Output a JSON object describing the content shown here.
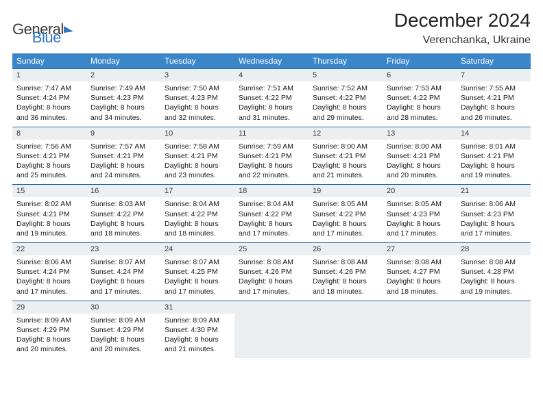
{
  "logo": {
    "text1": "General",
    "text2": "Blue"
  },
  "title": "December 2024",
  "location": "Verenchanka, Ukraine",
  "colors": {
    "header_bg": "#3a86c8",
    "header_text": "#ffffff",
    "daynum_bg": "#eceff1",
    "rule": "#2a6aa5",
    "text": "#1a1a1a",
    "logo_blue": "#2f78bf"
  },
  "weekdays": [
    "Sunday",
    "Monday",
    "Tuesday",
    "Wednesday",
    "Thursday",
    "Friday",
    "Saturday"
  ],
  "weeks": [
    [
      {
        "n": "1",
        "sr": "7:47 AM",
        "ss": "4:24 PM",
        "dl": "8 hours and 36 minutes."
      },
      {
        "n": "2",
        "sr": "7:49 AM",
        "ss": "4:23 PM",
        "dl": "8 hours and 34 minutes."
      },
      {
        "n": "3",
        "sr": "7:50 AM",
        "ss": "4:23 PM",
        "dl": "8 hours and 32 minutes."
      },
      {
        "n": "4",
        "sr": "7:51 AM",
        "ss": "4:22 PM",
        "dl": "8 hours and 31 minutes."
      },
      {
        "n": "5",
        "sr": "7:52 AM",
        "ss": "4:22 PM",
        "dl": "8 hours and 29 minutes."
      },
      {
        "n": "6",
        "sr": "7:53 AM",
        "ss": "4:22 PM",
        "dl": "8 hours and 28 minutes."
      },
      {
        "n": "7",
        "sr": "7:55 AM",
        "ss": "4:21 PM",
        "dl": "8 hours and 26 minutes."
      }
    ],
    [
      {
        "n": "8",
        "sr": "7:56 AM",
        "ss": "4:21 PM",
        "dl": "8 hours and 25 minutes."
      },
      {
        "n": "9",
        "sr": "7:57 AM",
        "ss": "4:21 PM",
        "dl": "8 hours and 24 minutes."
      },
      {
        "n": "10",
        "sr": "7:58 AM",
        "ss": "4:21 PM",
        "dl": "8 hours and 23 minutes."
      },
      {
        "n": "11",
        "sr": "7:59 AM",
        "ss": "4:21 PM",
        "dl": "8 hours and 22 minutes."
      },
      {
        "n": "12",
        "sr": "8:00 AM",
        "ss": "4:21 PM",
        "dl": "8 hours and 21 minutes."
      },
      {
        "n": "13",
        "sr": "8:00 AM",
        "ss": "4:21 PM",
        "dl": "8 hours and 20 minutes."
      },
      {
        "n": "14",
        "sr": "8:01 AM",
        "ss": "4:21 PM",
        "dl": "8 hours and 19 minutes."
      }
    ],
    [
      {
        "n": "15",
        "sr": "8:02 AM",
        "ss": "4:21 PM",
        "dl": "8 hours and 19 minutes."
      },
      {
        "n": "16",
        "sr": "8:03 AM",
        "ss": "4:22 PM",
        "dl": "8 hours and 18 minutes."
      },
      {
        "n": "17",
        "sr": "8:04 AM",
        "ss": "4:22 PM",
        "dl": "8 hours and 18 minutes."
      },
      {
        "n": "18",
        "sr": "8:04 AM",
        "ss": "4:22 PM",
        "dl": "8 hours and 17 minutes."
      },
      {
        "n": "19",
        "sr": "8:05 AM",
        "ss": "4:22 PM",
        "dl": "8 hours and 17 minutes."
      },
      {
        "n": "20",
        "sr": "8:05 AM",
        "ss": "4:23 PM",
        "dl": "8 hours and 17 minutes."
      },
      {
        "n": "21",
        "sr": "8:06 AM",
        "ss": "4:23 PM",
        "dl": "8 hours and 17 minutes."
      }
    ],
    [
      {
        "n": "22",
        "sr": "8:06 AM",
        "ss": "4:24 PM",
        "dl": "8 hours and 17 minutes."
      },
      {
        "n": "23",
        "sr": "8:07 AM",
        "ss": "4:24 PM",
        "dl": "8 hours and 17 minutes."
      },
      {
        "n": "24",
        "sr": "8:07 AM",
        "ss": "4:25 PM",
        "dl": "8 hours and 17 minutes."
      },
      {
        "n": "25",
        "sr": "8:08 AM",
        "ss": "4:26 PM",
        "dl": "8 hours and 17 minutes."
      },
      {
        "n": "26",
        "sr": "8:08 AM",
        "ss": "4:26 PM",
        "dl": "8 hours and 18 minutes."
      },
      {
        "n": "27",
        "sr": "8:08 AM",
        "ss": "4:27 PM",
        "dl": "8 hours and 18 minutes."
      },
      {
        "n": "28",
        "sr": "8:08 AM",
        "ss": "4:28 PM",
        "dl": "8 hours and 19 minutes."
      }
    ],
    [
      {
        "n": "29",
        "sr": "8:09 AM",
        "ss": "4:29 PM",
        "dl": "8 hours and 20 minutes."
      },
      {
        "n": "30",
        "sr": "8:09 AM",
        "ss": "4:29 PM",
        "dl": "8 hours and 20 minutes."
      },
      {
        "n": "31",
        "sr": "8:09 AM",
        "ss": "4:30 PM",
        "dl": "8 hours and 21 minutes."
      },
      null,
      null,
      null,
      null
    ]
  ],
  "labels": {
    "sunrise": "Sunrise:",
    "sunset": "Sunset:",
    "daylight": "Daylight:"
  }
}
